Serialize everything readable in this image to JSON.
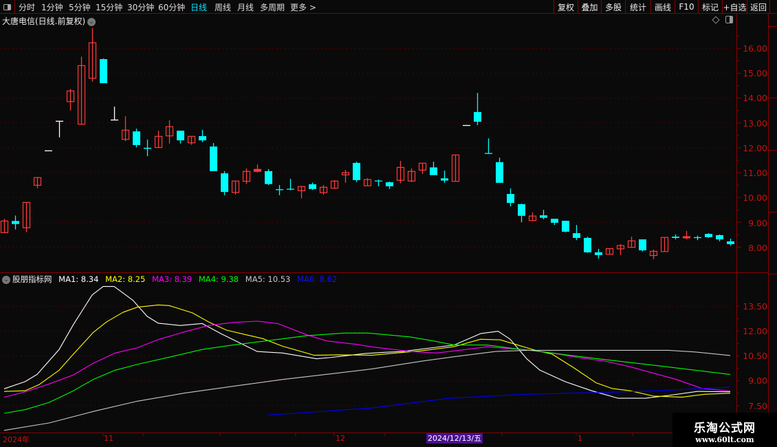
{
  "toolbar": {
    "tabs": [
      "分时",
      "1分钟",
      "5分钟",
      "15分钟",
      "30分钟",
      "60分钟",
      "日线",
      "周线",
      "月线",
      "多周期",
      "更多 >"
    ],
    "active_tab": "日线",
    "buttons": [
      "复权",
      "叠加",
      "多股",
      "统计",
      "画线",
      "F10",
      "标记",
      "+自选",
      "返回"
    ]
  },
  "title": "大唐电信(日线.前复权)",
  "colors": {
    "up": "#ff3b3b",
    "down": "#00ffff",
    "flat": "#ffffff",
    "grid": "#7a0000",
    "axis_text": "#cc1010"
  },
  "price_axis": {
    "labels": [
      "16.00",
      "15.00",
      "14.00",
      "13.00",
      "12.00",
      "11.00",
      "10.00",
      "9.00",
      "8.00"
    ]
  },
  "indicator": {
    "name": "股朋指标网",
    "legend": [
      {
        "label": "MA1: 8.34",
        "color": "#ffffff"
      },
      {
        "label": "MA2: 8.25",
        "color": "#ffff00"
      },
      {
        "label": "MA3: 8.39",
        "color": "#ff00ff"
      },
      {
        "label": "MA4: 9.38",
        "color": "#00ff00"
      },
      {
        "label": "MA5: 10.53",
        "color": "#c8c8c8"
      },
      {
        "label": "MA6: 8.62",
        "color": "#0000ff"
      }
    ],
    "axis_labels": [
      "13.50",
      "12.00",
      "10.50",
      "9.00",
      "7.50"
    ]
  },
  "date_axis": {
    "labels": [
      "2024年",
      "11",
      "12",
      "1"
    ],
    "cursor_date": "2024/12/13/五"
  },
  "watermark": {
    "name": "乐淘公式网",
    "url": "www.60lt.com"
  },
  "chart_data": [
    {
      "type": "candlestick",
      "ylim": [
        7.3,
        16.9
      ],
      "fields": [
        "open",
        "high",
        "low",
        "close"
      ],
      "candles": [
        [
          8.58,
          9.14,
          8.58,
          9.05
        ],
        [
          9.05,
          9.27,
          8.71,
          8.93
        ],
        [
          8.78,
          9.8,
          8.6,
          9.8
        ],
        [
          10.49,
          10.8,
          10.37,
          10.8
        ],
        [
          11.88,
          11.88,
          11.88,
          11.88
        ],
        [
          13.07,
          13.07,
          12.42,
          13.07
        ],
        [
          13.86,
          14.37,
          13.5,
          14.29
        ],
        [
          12.95,
          15.67,
          12.95,
          15.31
        ],
        [
          14.8,
          16.82,
          14.66,
          16.23
        ],
        [
          15.57,
          15.6,
          14.6,
          14.6
        ],
        [
          13.12,
          13.66,
          13.12,
          13.12
        ],
        [
          12.34,
          13.27,
          12.27,
          12.71
        ],
        [
          12.66,
          12.77,
          12.02,
          12.11
        ],
        [
          12.0,
          12.33,
          11.66,
          11.96
        ],
        [
          12.01,
          12.69,
          12.01,
          12.46
        ],
        [
          12.48,
          13.11,
          12.17,
          12.85
        ],
        [
          12.69,
          12.69,
          12.17,
          12.3
        ],
        [
          12.2,
          12.46,
          12.12,
          12.46
        ],
        [
          12.47,
          12.72,
          12.23,
          12.3
        ],
        [
          12.05,
          12.19,
          11.06,
          11.06
        ],
        [
          10.97,
          11.06,
          10.09,
          10.22
        ],
        [
          10.2,
          10.66,
          10.12,
          10.66
        ],
        [
          10.65,
          11.17,
          10.54,
          11.05
        ],
        [
          11.05,
          11.33,
          11.01,
          11.13
        ],
        [
          11.06,
          11.14,
          10.5,
          10.54
        ],
        [
          10.33,
          10.5,
          10.09,
          10.3
        ],
        [
          10.35,
          10.75,
          10.29,
          10.32
        ],
        [
          10.27,
          10.44,
          9.96,
          10.44
        ],
        [
          10.53,
          10.6,
          10.3,
          10.34
        ],
        [
          10.19,
          10.5,
          10.11,
          10.41
        ],
        [
          10.37,
          10.7,
          10.37,
          10.66
        ],
        [
          10.91,
          11.11,
          10.59,
          11.0
        ],
        [
          11.39,
          11.44,
          10.62,
          10.7
        ],
        [
          10.47,
          10.78,
          10.47,
          10.72
        ],
        [
          10.68,
          10.72,
          10.45,
          10.66
        ],
        [
          10.61,
          10.64,
          10.34,
          10.45
        ],
        [
          10.69,
          11.47,
          10.57,
          11.21
        ],
        [
          10.66,
          11.17,
          10.62,
          11.05
        ],
        [
          11.1,
          11.38,
          10.95,
          11.38
        ],
        [
          11.21,
          11.44,
          10.9,
          10.9
        ],
        [
          10.77,
          11.08,
          10.59,
          10.68
        ],
        [
          10.65,
          11.71,
          10.65,
          11.71
        ],
        [
          12.9,
          12.9,
          12.9,
          12.9
        ],
        [
          13.44,
          14.21,
          12.91,
          13.05
        ],
        [
          11.79,
          12.38,
          11.77,
          11.77
        ],
        [
          11.42,
          11.6,
          10.59,
          10.59
        ],
        [
          10.14,
          10.36,
          9.64,
          9.78
        ],
        [
          9.73,
          9.75,
          9.0,
          9.26
        ],
        [
          9.07,
          9.4,
          9.07,
          9.25
        ],
        [
          9.28,
          9.5,
          9.12,
          9.18
        ],
        [
          9.14,
          9.14,
          8.89,
          8.98
        ],
        [
          9.06,
          9.06,
          8.59,
          8.62
        ],
        [
          8.56,
          8.89,
          8.28,
          8.37
        ],
        [
          8.37,
          8.42,
          7.77,
          7.79
        ],
        [
          7.79,
          7.93,
          7.54,
          7.68
        ],
        [
          7.71,
          7.94,
          7.71,
          7.94
        ],
        [
          7.93,
          8.12,
          7.68,
          8.06
        ],
        [
          7.99,
          8.42,
          7.99,
          8.25
        ],
        [
          8.31,
          8.31,
          7.82,
          7.87
        ],
        [
          7.66,
          7.9,
          7.51,
          7.83
        ],
        [
          7.82,
          8.39,
          7.82,
          8.39
        ],
        [
          8.42,
          8.51,
          8.31,
          8.37
        ],
        [
          8.37,
          8.65,
          8.31,
          8.42
        ],
        [
          8.4,
          8.46,
          8.28,
          8.39
        ],
        [
          8.53,
          8.56,
          8.37,
          8.4
        ],
        [
          8.48,
          8.51,
          8.23,
          8.31
        ],
        [
          8.23,
          8.34,
          8.06,
          8.12
        ]
      ]
    },
    {
      "type": "line",
      "x_unit": "bar index",
      "ylim": [
        6.0,
        14.8
      ],
      "series": [
        {
          "name": "MA1",
          "color": "#ffffff",
          "points": [
            [
              0,
              8.52
            ],
            [
              1.9,
              8.95
            ],
            [
              3,
              9.39
            ],
            [
              5,
              10.89
            ],
            [
              6.3,
              12.4
            ],
            [
              8,
              14.18
            ],
            [
              9,
              14.69
            ],
            [
              10,
              14.69
            ],
            [
              11.7,
              13.86
            ],
            [
              13,
              12.89
            ],
            [
              14,
              12.48
            ],
            [
              16,
              12.34
            ],
            [
              18,
              12.46
            ],
            [
              19.7,
              11.85
            ],
            [
              23,
              10.77
            ],
            [
              25.3,
              10.68
            ],
            [
              28.4,
              10.33
            ],
            [
              29.6,
              10.4
            ],
            [
              32.7,
              10.64
            ],
            [
              34.6,
              10.72
            ],
            [
              36.2,
              10.77
            ],
            [
              40.9,
              11.16
            ],
            [
              43.3,
              11.85
            ],
            [
              44.9,
              11.99
            ],
            [
              46,
              11.51
            ],
            [
              47.5,
              10.33
            ],
            [
              48.7,
              9.64
            ],
            [
              51,
              8.95
            ],
            [
              53.4,
              8.4
            ],
            [
              55.8,
              7.95
            ],
            [
              58.3,
              7.95
            ],
            [
              60.4,
              8.12
            ],
            [
              63,
              8.36
            ],
            [
              66,
              8.34
            ]
          ]
        },
        {
          "name": "MA2",
          "color": "#ffff00",
          "points": [
            [
              0,
              8.36
            ],
            [
              1.9,
              8.4
            ],
            [
              3.2,
              8.78
            ],
            [
              5,
              9.64
            ],
            [
              6.3,
              10.61
            ],
            [
              8.1,
              11.92
            ],
            [
              9.3,
              12.55
            ],
            [
              10.8,
              13.13
            ],
            [
              12.1,
              13.44
            ],
            [
              14,
              13.58
            ],
            [
              15,
              13.54
            ],
            [
              17.1,
              13.1
            ],
            [
              18.6,
              12.55
            ],
            [
              20.2,
              12.06
            ],
            [
              22,
              11.78
            ],
            [
              23.5,
              11.55
            ],
            [
              25.3,
              11.09
            ],
            [
              28.2,
              10.54
            ],
            [
              30.4,
              10.57
            ],
            [
              33.4,
              10.54
            ],
            [
              38,
              10.82
            ],
            [
              40.9,
              11.06
            ],
            [
              43.3,
              11.51
            ],
            [
              45.1,
              11.47
            ],
            [
              48.4,
              10.82
            ],
            [
              49.8,
              10.61
            ],
            [
              51.8,
              9.78
            ],
            [
              53.8,
              8.88
            ],
            [
              55.3,
              8.53
            ],
            [
              56.9,
              8.4
            ],
            [
              59,
              8.08
            ],
            [
              61.6,
              8.01
            ],
            [
              63.7,
              8.19
            ],
            [
              66,
              8.25
            ]
          ]
        },
        {
          "name": "MA3",
          "color": "#ff00ff",
          "points": [
            [
              0,
              8.01
            ],
            [
              1.9,
              8.33
            ],
            [
              4.1,
              8.81
            ],
            [
              6.3,
              9.36
            ],
            [
              8.1,
              10.06
            ],
            [
              10.1,
              10.68
            ],
            [
              12.1,
              10.99
            ],
            [
              14.1,
              11.51
            ],
            [
              16.6,
              11.99
            ],
            [
              18.6,
              12.34
            ],
            [
              20.8,
              12.52
            ],
            [
              23,
              12.6
            ],
            [
              24.9,
              12.45
            ],
            [
              27.5,
              11.78
            ],
            [
              29.3,
              11.41
            ],
            [
              32,
              11.2
            ],
            [
              33.4,
              11.05
            ],
            [
              36.9,
              10.77
            ],
            [
              39.3,
              10.68
            ],
            [
              41.6,
              10.86
            ],
            [
              43.9,
              11.05
            ],
            [
              47.5,
              10.86
            ],
            [
              49.8,
              10.68
            ],
            [
              52.2,
              10.4
            ],
            [
              54.6,
              10.19
            ],
            [
              56.9,
              9.85
            ],
            [
              58.8,
              9.5
            ],
            [
              61.1,
              9.08
            ],
            [
              63.5,
              8.53
            ],
            [
              66,
              8.39
            ]
          ]
        },
        {
          "name": "MA4",
          "color": "#00ff00",
          "points": [
            [
              0,
              7.04
            ],
            [
              1.9,
              7.26
            ],
            [
              4.1,
              7.7
            ],
            [
              6.3,
              8.4
            ],
            [
              8.1,
              9.08
            ],
            [
              10.1,
              9.64
            ],
            [
              12.1,
              9.99
            ],
            [
              15.3,
              10.47
            ],
            [
              18,
              10.89
            ],
            [
              20.8,
              11.16
            ],
            [
              24.2,
              11.44
            ],
            [
              27.5,
              11.72
            ],
            [
              30.9,
              11.88
            ],
            [
              33.1,
              11.88
            ],
            [
              36.9,
              11.65
            ],
            [
              39.3,
              11.37
            ],
            [
              40.9,
              11.16
            ],
            [
              43.9,
              11.16
            ],
            [
              46.3,
              10.95
            ],
            [
              48.7,
              10.77
            ],
            [
              52.2,
              10.47
            ],
            [
              55.8,
              10.19
            ],
            [
              59.3,
              9.92
            ],
            [
              62.8,
              9.64
            ],
            [
              66,
              9.38
            ]
          ]
        },
        {
          "name": "MA5",
          "color": "#c8c8c8",
          "points": [
            [
              0,
              6.01
            ],
            [
              4.1,
              6.46
            ],
            [
              8.1,
              7.15
            ],
            [
              12.1,
              7.77
            ],
            [
              16.4,
              8.26
            ],
            [
              20.8,
              8.67
            ],
            [
              25.3,
              9.08
            ],
            [
              29.8,
              9.43
            ],
            [
              33.4,
              9.71
            ],
            [
              38,
              10.19
            ],
            [
              41.1,
              10.47
            ],
            [
              44.7,
              10.77
            ],
            [
              47.5,
              10.84
            ],
            [
              52.2,
              10.84
            ],
            [
              60.4,
              10.84
            ],
            [
              62.8,
              10.74
            ],
            [
              66,
              10.53
            ]
          ]
        },
        {
          "name": "MA6",
          "color": "#0000ff",
          "points": [
            [
              24,
              6.94
            ],
            [
              26.4,
              7.04
            ],
            [
              33.4,
              7.36
            ],
            [
              40.4,
              7.94
            ],
            [
              47.5,
              8.19
            ],
            [
              54.6,
              8.3
            ],
            [
              59.3,
              8.4
            ],
            [
              66,
              8.62
            ]
          ]
        }
      ]
    }
  ]
}
